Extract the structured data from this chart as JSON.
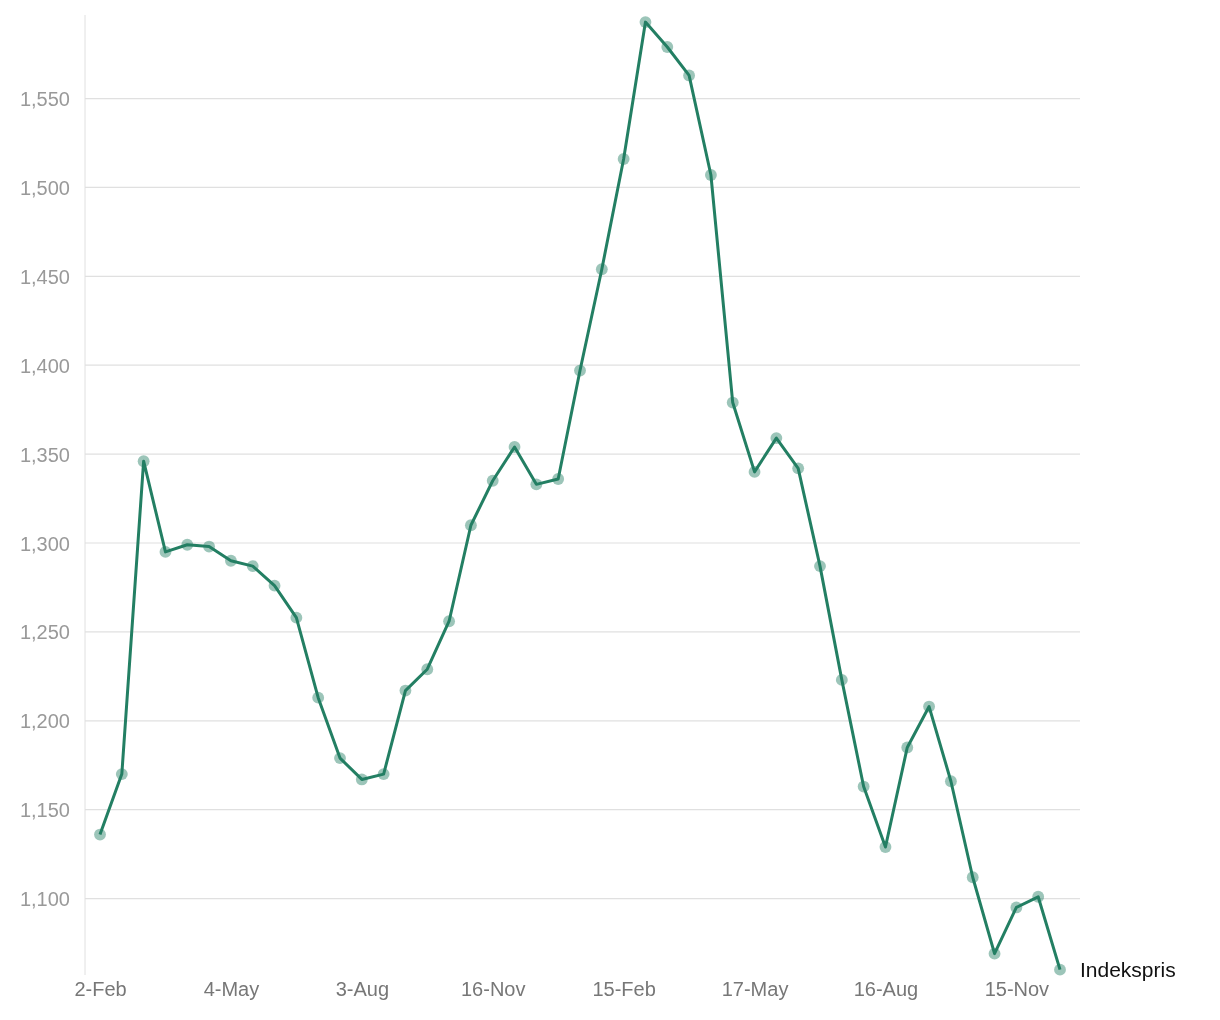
{
  "chart_data": {
    "type": "line",
    "categories": [
      "2-Feb",
      null,
      null,
      null,
      null,
      null,
      "4-May",
      null,
      null,
      null,
      null,
      null,
      "3-Aug",
      null,
      null,
      null,
      null,
      null,
      "16-Nov",
      null,
      null,
      null,
      null,
      null,
      "15-Feb",
      null,
      null,
      null,
      null,
      null,
      "17-May",
      null,
      null,
      null,
      null,
      null,
      "16-Aug",
      null,
      null,
      null,
      null,
      null,
      "15-Nov",
      null,
      null
    ],
    "series": [
      {
        "name": "Indekspris",
        "color": "#237f63",
        "values": [
          1136,
          1170,
          1346,
          1295,
          1299,
          1298,
          1290,
          1287,
          1276,
          1258,
          1213,
          1179,
          1167,
          1170,
          1217,
          1229,
          1256,
          1310,
          1335,
          1354,
          1333,
          1336,
          1397,
          1454,
          1516,
          1593,
          1579,
          1563,
          1507,
          1379,
          1340,
          1359,
          1342,
          1287,
          1223,
          1163,
          1129,
          1185,
          1208,
          1166,
          1112,
          1069,
          1095,
          1101,
          1060
        ]
      }
    ],
    "ylim": [
      1057,
      1597
    ],
    "yticks": [
      {
        "value": 1100,
        "label": "1,100"
      },
      {
        "value": 1150,
        "label": "1,150"
      },
      {
        "value": 1200,
        "label": "1,200"
      },
      {
        "value": 1250,
        "label": "1,250"
      },
      {
        "value": 1300,
        "label": "1,300"
      },
      {
        "value": 1350,
        "label": "1,350"
      },
      {
        "value": 1400,
        "label": "1,400"
      },
      {
        "value": 1450,
        "label": "1,450"
      },
      {
        "value": 1500,
        "label": "1,500"
      },
      {
        "value": 1550,
        "label": "1,550"
      }
    ],
    "grid": "y",
    "marker": "circle",
    "line_style": "solid"
  }
}
